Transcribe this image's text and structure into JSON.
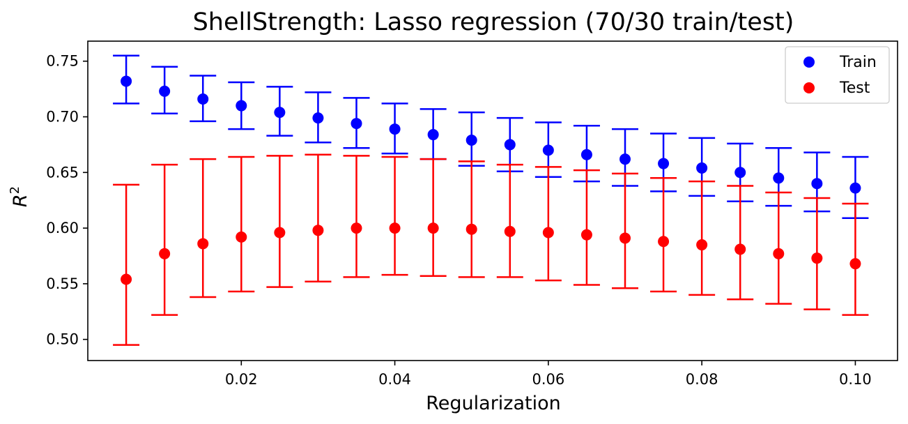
{
  "chart_data": {
    "type": "scatter",
    "title": "ShellStrength: Lasso regression (70/30 train/test)",
    "xlabel": "Regularization",
    "ylabel": "R",
    "ylabel_superscript": "2",
    "xlim": [
      0.0,
      0.1055
    ],
    "ylim": [
      0.481,
      0.768
    ],
    "xticks": [
      0.02,
      0.04,
      0.06,
      0.08,
      0.1
    ],
    "xtick_labels": [
      "0.02",
      "0.04",
      "0.06",
      "0.08",
      "0.10"
    ],
    "yticks": [
      0.5,
      0.55,
      0.6,
      0.65,
      0.7,
      0.75
    ],
    "ytick_labels": [
      "0.50",
      "0.55",
      "0.60",
      "0.65",
      "0.70",
      "0.75"
    ],
    "grid": false,
    "legend_position": "top-right",
    "x": [
      0.005,
      0.01,
      0.015,
      0.02,
      0.025,
      0.03,
      0.035,
      0.04,
      0.045,
      0.05,
      0.055,
      0.06,
      0.065,
      0.07,
      0.075,
      0.08,
      0.085,
      0.09,
      0.095,
      0.1
    ],
    "series": [
      {
        "name": "Train",
        "color": "#0000ff",
        "values": [
          0.732,
          0.723,
          0.716,
          0.71,
          0.704,
          0.699,
          0.694,
          0.689,
          0.684,
          0.679,
          0.675,
          0.67,
          0.666,
          0.662,
          0.658,
          0.654,
          0.65,
          0.645,
          0.64,
          0.636
        ],
        "lower": [
          0.712,
          0.703,
          0.696,
          0.689,
          0.683,
          0.677,
          0.672,
          0.667,
          0.662,
          0.656,
          0.651,
          0.646,
          0.642,
          0.638,
          0.633,
          0.629,
          0.624,
          0.62,
          0.615,
          0.609
        ],
        "upper": [
          0.755,
          0.745,
          0.737,
          0.731,
          0.727,
          0.722,
          0.717,
          0.712,
          0.707,
          0.704,
          0.699,
          0.695,
          0.692,
          0.689,
          0.685,
          0.681,
          0.676,
          0.672,
          0.668,
          0.664
        ]
      },
      {
        "name": "Test",
        "color": "#ff0000",
        "values": [
          0.554,
          0.577,
          0.586,
          0.592,
          0.596,
          0.598,
          0.6,
          0.6,
          0.6,
          0.599,
          0.597,
          0.596,
          0.594,
          0.591,
          0.588,
          0.585,
          0.581,
          0.577,
          0.573,
          0.568
        ],
        "lower": [
          0.495,
          0.522,
          0.538,
          0.543,
          0.547,
          0.552,
          0.556,
          0.558,
          0.557,
          0.556,
          0.556,
          0.553,
          0.549,
          0.546,
          0.543,
          0.54,
          0.536,
          0.532,
          0.527,
          0.522
        ],
        "upper": [
          0.639,
          0.657,
          0.662,
          0.664,
          0.665,
          0.666,
          0.665,
          0.664,
          0.662,
          0.66,
          0.657,
          0.655,
          0.652,
          0.649,
          0.645,
          0.642,
          0.638,
          0.632,
          0.627,
          0.622
        ]
      }
    ]
  }
}
